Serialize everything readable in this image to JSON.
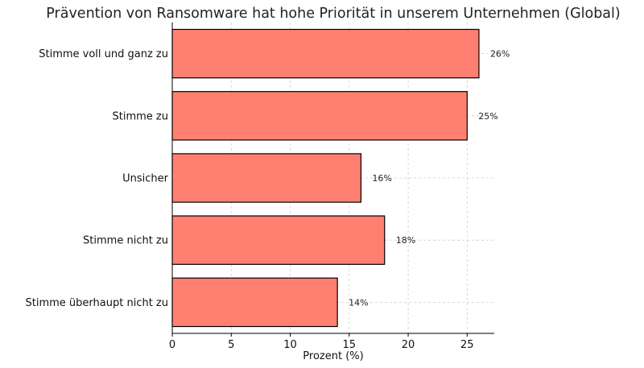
{
  "chart_data": {
    "type": "bar",
    "orientation": "horizontal",
    "title": "Prävention von Ransomware hat hohe Priorität in unserem Unternehmen (Global)",
    "xlabel": "Prozent (%)",
    "ylabel": "",
    "categories": [
      "Stimme voll und ganz zu",
      "Stimme zu",
      "Unsicher",
      "Stimme nicht zu",
      "Stimme überhaupt nicht zu"
    ],
    "values": [
      26,
      25,
      16,
      18,
      14
    ],
    "data_labels": [
      "26%",
      "25%",
      "16%",
      "18%",
      "14%"
    ],
    "xlim": [
      0,
      27.3
    ],
    "xticks": [
      0,
      5,
      10,
      15,
      20,
      25
    ],
    "xtick_labels": [
      "0",
      "5",
      "10",
      "15",
      "20",
      "25"
    ],
    "grid": true,
    "legend": "none",
    "bar_color": "#ff8070",
    "edge_color": "#000000"
  }
}
